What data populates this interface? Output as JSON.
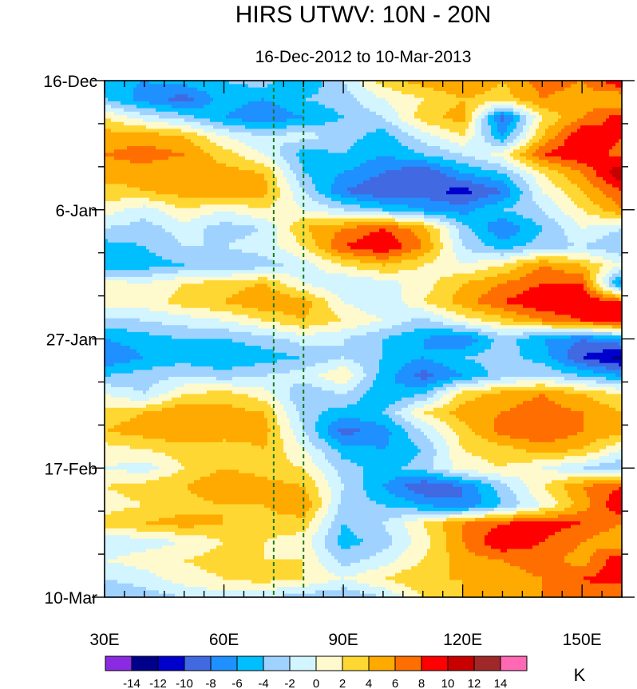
{
  "chart_data": {
    "type": "heatmap",
    "title": "HIRS UTWV: 10N - 20N",
    "subtitle": "16-Dec-2012 to 10-Mar-2013",
    "x_axis": {
      "range": [
        30,
        160
      ],
      "ticks": [
        30,
        60,
        90,
        120,
        150
      ],
      "tick_labels": [
        "30E",
        "60E",
        "90E",
        "120E",
        "150E"
      ],
      "minor_step": 5
    },
    "y_axis": {
      "range_days": [
        0,
        84
      ],
      "ticks": [
        0,
        21,
        42,
        63,
        84
      ],
      "tick_labels": [
        "16-Dec",
        "6-Jan",
        "27-Jan",
        "17-Feb",
        "10-Mar"
      ],
      "minor_step": 7,
      "direction": "time increases downward"
    },
    "reference_lines": [
      {
        "lon": 72.5,
        "style": "dashed",
        "color": "#1a7a1a"
      },
      {
        "lon": 80,
        "style": "dashed",
        "color": "#1a7a1a"
      }
    ],
    "colorbar": {
      "unit": "K",
      "levels": [
        -14,
        -12,
        -10,
        -8,
        -6,
        -4,
        -2,
        0,
        2,
        4,
        6,
        8,
        10,
        12,
        14
      ],
      "level_labels": [
        "-14",
        "-12",
        "-10",
        "-8",
        "-6",
        "-4",
        "-2",
        "0",
        "2",
        "4",
        "6",
        "8",
        "10",
        "12",
        "14"
      ],
      "colors": [
        "#8a2be2",
        "#00008b",
        "#0000cd",
        "#4169e1",
        "#1e90ff",
        "#00bfff",
        "#a0d2ff",
        "#d2f5ff",
        "#fffacd",
        "#ffd732",
        "#ffaa00",
        "#ff6e00",
        "#ff0000",
        "#c80000",
        "#a02828",
        "#ff69b4"
      ]
    },
    "lons": [
      30,
      40,
      50,
      60,
      70,
      80,
      90,
      100,
      110,
      120,
      130,
      140,
      150,
      160
    ],
    "days": [
      0,
      3,
      6,
      9,
      12,
      15,
      18,
      21,
      24,
      27,
      30,
      33,
      36,
      39,
      42,
      45,
      48,
      51,
      54,
      57,
      60,
      63,
      66,
      69,
      72,
      75,
      78,
      81,
      84
    ],
    "values": [
      [
        -5,
        -6,
        -5,
        -4,
        -3,
        -6,
        -2,
        3,
        5,
        6,
        4,
        7,
        6,
        10
      ],
      [
        -4,
        -7,
        -9,
        -5,
        -6,
        -4,
        -3,
        0,
        2,
        4,
        3,
        6,
        5,
        4
      ],
      [
        2,
        -1,
        -3,
        -6,
        -8,
        -6,
        -4,
        -2,
        3,
        5,
        -9,
        2,
        6,
        9
      ],
      [
        5,
        5,
        4,
        0,
        -2,
        -1,
        -3,
        -5,
        -1,
        2,
        -6,
        4,
        10,
        8
      ],
      [
        6,
        7,
        6,
        3,
        0,
        -5,
        -4,
        -6,
        -4,
        -2,
        1,
        8,
        10,
        7
      ],
      [
        5,
        5,
        4,
        5,
        4,
        -4,
        -6,
        -8,
        -10,
        -6,
        -4,
        2,
        6,
        12
      ],
      [
        3,
        4,
        5,
        6,
        5,
        -2,
        -8,
        -10,
        -9,
        -11,
        -8,
        0,
        4,
        8
      ],
      [
        1,
        -1,
        2,
        0,
        2,
        0,
        -2,
        -4,
        -6,
        -7,
        -4,
        -2,
        2,
        6
      ],
      [
        -2,
        -3,
        -1,
        -3,
        -2,
        4,
        6,
        8,
        5,
        -3,
        -8,
        -4,
        0,
        -2
      ],
      [
        -5,
        -4,
        -2,
        -2,
        -1,
        2,
        8,
        10,
        6,
        -2,
        -5,
        -3,
        -2,
        -4
      ],
      [
        -6,
        -5,
        -4,
        -4,
        -3,
        -1,
        2,
        4,
        2,
        0,
        2,
        6,
        4,
        0
      ],
      [
        1,
        0,
        2,
        3,
        4,
        0,
        -2,
        -1,
        1,
        4,
        6,
        8,
        8,
        -8
      ],
      [
        2,
        1,
        3,
        4,
        6,
        5,
        0,
        -2,
        2,
        5,
        8,
        10,
        10,
        8
      ],
      [
        -3,
        -2,
        -1,
        0,
        2,
        4,
        2,
        0,
        -3,
        1,
        3,
        6,
        8,
        10
      ],
      [
        -6,
        -5,
        -4,
        -4,
        -3,
        -1,
        -2,
        -4,
        -6,
        -8,
        -3,
        -6,
        -8,
        -6
      ],
      [
        -8,
        -6,
        -5,
        -6,
        -5,
        -4,
        -2,
        -4,
        -6,
        -4,
        -3,
        -5,
        -10,
        -13
      ],
      [
        -4,
        -3,
        -2,
        -3,
        -2,
        -1,
        2,
        -5,
        -9,
        -6,
        -3,
        -2,
        -4,
        -6
      ],
      [
        0,
        -2,
        2,
        3,
        1,
        -4,
        -2,
        -6,
        -4,
        3,
        5,
        6,
        4,
        2
      ],
      [
        3,
        4,
        6,
        5,
        4,
        -3,
        -5,
        -4,
        2,
        5,
        6,
        7,
        6,
        4
      ],
      [
        4,
        5,
        6,
        6,
        5,
        -2,
        -9,
        -7,
        -2,
        3,
        7,
        8,
        6,
        5
      ],
      [
        1,
        2,
        3,
        2,
        4,
        0,
        -5,
        -6,
        -4,
        2,
        3,
        5,
        4,
        0
      ],
      [
        0,
        -1,
        2,
        4,
        3,
        2,
        -3,
        -5,
        -3,
        1,
        2,
        0,
        -2,
        -4
      ],
      [
        2,
        3,
        4,
        6,
        5,
        4,
        -2,
        -6,
        -10,
        -8,
        -3,
        2,
        6,
        8
      ],
      [
        1,
        2,
        3,
        4,
        4,
        6,
        -3,
        -4,
        -6,
        -8,
        -4,
        0,
        5,
        10
      ],
      [
        3,
        4,
        5,
        4,
        3,
        3,
        -4,
        -2,
        2,
        6,
        8,
        9,
        8,
        6
      ],
      [
        -2,
        -1,
        0,
        2,
        2,
        1,
        -5,
        -3,
        1,
        6,
        10,
        8,
        6,
        4
      ],
      [
        0,
        1,
        2,
        3,
        2,
        2,
        -3,
        -1,
        2,
        5,
        6,
        7,
        5,
        10
      ],
      [
        -2,
        -1,
        1,
        2,
        3,
        2,
        0,
        2,
        4,
        4,
        5,
        6,
        8,
        9
      ],
      [
        -4,
        -3,
        -2,
        -1,
        -2,
        -3,
        -4,
        -2,
        2,
        4,
        5,
        6,
        7,
        6
      ]
    ]
  }
}
